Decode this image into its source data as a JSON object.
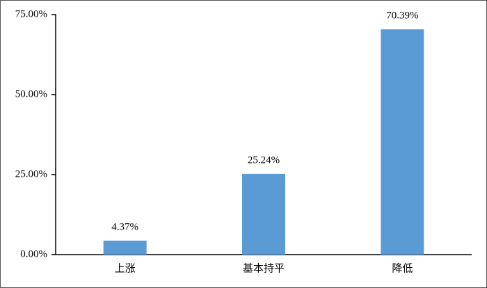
{
  "chart_data": {
    "type": "bar",
    "categories": [
      "上涨",
      "基本持平",
      "降低"
    ],
    "values": [
      4.37,
      25.24,
      70.39
    ],
    "value_labels": [
      "4.37%",
      "25.24%",
      "70.39%"
    ],
    "color": "#5b9bd5",
    "ylim": [
      0,
      75
    ],
    "yticks": [
      {
        "value": 0,
        "label": "0.00%"
      },
      {
        "value": 25,
        "label": "25.00%"
      },
      {
        "value": 50,
        "label": "50.00%"
      },
      {
        "value": 75,
        "label": "75.00%"
      }
    ],
    "grid": false
  }
}
